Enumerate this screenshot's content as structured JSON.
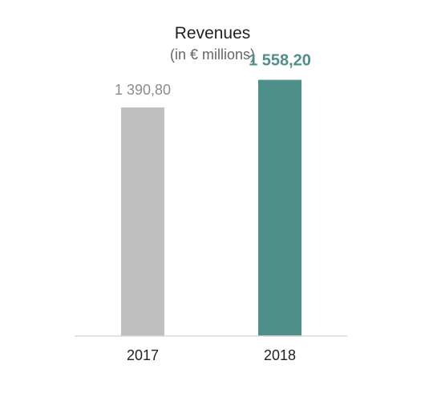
{
  "chart_data": {
    "type": "bar",
    "title": "Revenues",
    "subtitle": "(in € millions)",
    "categories": [
      "2017",
      "2018"
    ],
    "values": [
      1390.8,
      1558.2
    ],
    "value_labels": [
      "1 390,80",
      "1 558,20"
    ],
    "colors": [
      "#bfbfbf",
      "#4f8f8a"
    ],
    "label_colors": [
      "#8c8c8c",
      "#4f8f8a"
    ],
    "label_bold": [
      false,
      true
    ],
    "xlabel": "",
    "ylabel": "",
    "ylim": [
      0,
      1800
    ],
    "grid": false,
    "legend": "none"
  }
}
